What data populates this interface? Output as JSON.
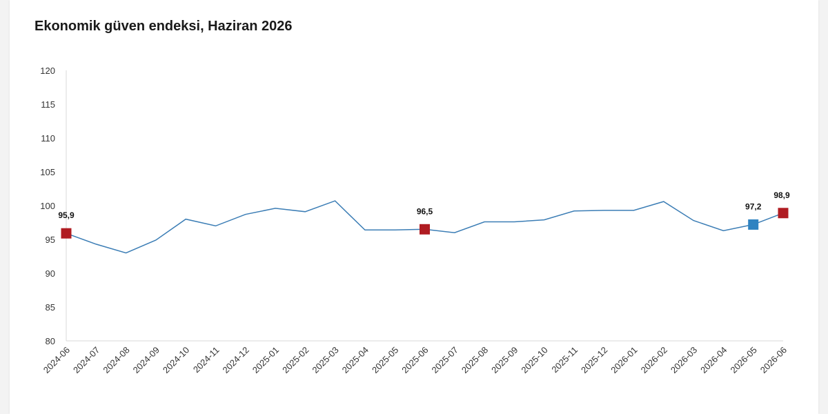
{
  "chart_data": {
    "type": "line",
    "title": "Ekonomik güven endeksi, Haziran 2026",
    "xlabel": "",
    "ylabel": "",
    "ylim": [
      80,
      120
    ],
    "yticks": [
      80,
      85,
      90,
      95,
      100,
      105,
      110,
      115,
      120
    ],
    "grid": false,
    "line_color": "#3b7db5",
    "categories": [
      "2024-06",
      "2024-07",
      "2024-08",
      "2024-09",
      "2024-10",
      "2024-11",
      "2024-12",
      "2025-01",
      "2025-02",
      "2025-03",
      "2025-04",
      "2025-05",
      "2025-06",
      "2025-07",
      "2025-08",
      "2025-09",
      "2025-10",
      "2025-11",
      "2025-12",
      "2026-01",
      "2026-02",
      "2026-03",
      "2026-04",
      "2026-05",
      "2026-06"
    ],
    "values": [
      95.9,
      94.3,
      93.0,
      94.9,
      98.0,
      97.0,
      98.7,
      99.6,
      99.1,
      100.7,
      96.4,
      96.4,
      96.5,
      96.0,
      97.6,
      97.6,
      97.9,
      99.2,
      99.3,
      99.3,
      100.6,
      97.8,
      96.3,
      97.2,
      98.9
    ],
    "highlights": [
      {
        "index": 0,
        "label": "95,9",
        "color": "#b01c22"
      },
      {
        "index": 12,
        "label": "96,5",
        "color": "#b01c22"
      },
      {
        "index": 23,
        "label": "97,2",
        "color": "#2f83c1"
      },
      {
        "index": 24,
        "label": "98,9",
        "color": "#b01c22"
      }
    ]
  }
}
